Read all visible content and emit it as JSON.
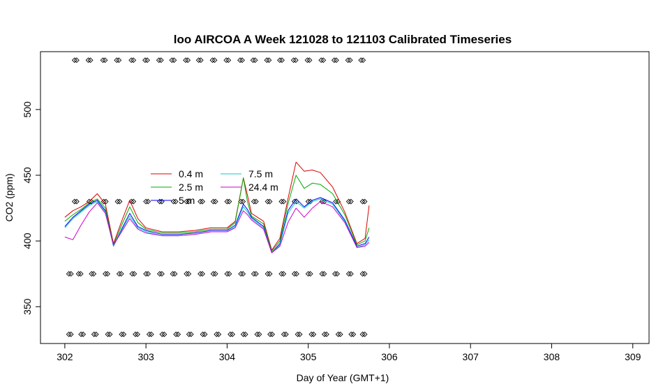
{
  "chart_data": {
    "type": "line",
    "title": "loo AIRCOA A  Week 121028 to 121103  Calibrated Timeseries",
    "xlabel": "Day of Year (GMT+1)",
    "ylabel": "CO2 (ppm)",
    "xlim": [
      301.7,
      309.2
    ],
    "ylim": [
      322,
      544
    ],
    "x_ticks": [
      302,
      303,
      304,
      305,
      306,
      307,
      308,
      309
    ],
    "y_ticks": [
      350,
      400,
      450,
      500
    ],
    "grid": false,
    "legend_placement": "center-left",
    "series": [
      {
        "name": "0.4 m",
        "color": "#dd0000",
        "points": [
          [
            302.0,
            418
          ],
          [
            302.1,
            423
          ],
          [
            302.2,
            426
          ],
          [
            302.3,
            430
          ],
          [
            302.4,
            436
          ],
          [
            302.5,
            428
          ],
          [
            302.6,
            398
          ],
          [
            302.7,
            415
          ],
          [
            302.8,
            431
          ],
          [
            302.9,
            417
          ],
          [
            303.0,
            410
          ],
          [
            303.2,
            407
          ],
          [
            303.4,
            407
          ],
          [
            303.6,
            408
          ],
          [
            303.8,
            410
          ],
          [
            304.0,
            410
          ],
          [
            304.1,
            415
          ],
          [
            304.2,
            448
          ],
          [
            304.25,
            435
          ],
          [
            304.3,
            421
          ],
          [
            304.45,
            415
          ],
          [
            304.55,
            393
          ],
          [
            304.65,
            402
          ],
          [
            304.75,
            432
          ],
          [
            304.85,
            460
          ],
          [
            304.95,
            453
          ],
          [
            305.05,
            454
          ],
          [
            305.15,
            452
          ],
          [
            305.3,
            441
          ],
          [
            305.45,
            422
          ],
          [
            305.6,
            398
          ],
          [
            305.7,
            402
          ],
          [
            305.75,
            427
          ]
        ]
      },
      {
        "name": "2.5 m",
        "color": "#00aa00",
        "points": [
          [
            302.0,
            415
          ],
          [
            302.1,
            420
          ],
          [
            302.2,
            424
          ],
          [
            302.3,
            429
          ],
          [
            302.4,
            432
          ],
          [
            302.5,
            425
          ],
          [
            302.6,
            397
          ],
          [
            302.7,
            412
          ],
          [
            302.8,
            426
          ],
          [
            302.9,
            414
          ],
          [
            303.0,
            409
          ],
          [
            303.2,
            406
          ],
          [
            303.4,
            406
          ],
          [
            303.6,
            407
          ],
          [
            303.8,
            409
          ],
          [
            304.0,
            409
          ],
          [
            304.1,
            414
          ],
          [
            304.2,
            448
          ],
          [
            304.25,
            430
          ],
          [
            304.3,
            419
          ],
          [
            304.45,
            413
          ],
          [
            304.55,
            392
          ],
          [
            304.65,
            400
          ],
          [
            304.75,
            428
          ],
          [
            304.85,
            450
          ],
          [
            304.95,
            440
          ],
          [
            305.05,
            444
          ],
          [
            305.15,
            443
          ],
          [
            305.3,
            436
          ],
          [
            305.45,
            420
          ],
          [
            305.6,
            397
          ],
          [
            305.7,
            400
          ],
          [
            305.75,
            410
          ]
        ]
      },
      {
        "name": "5 m",
        "color": "#0000ee",
        "points": [
          [
            302.0,
            411
          ],
          [
            302.1,
            418
          ],
          [
            302.2,
            423
          ],
          [
            302.3,
            428
          ],
          [
            302.4,
            431
          ],
          [
            302.5,
            423
          ],
          [
            302.6,
            396
          ],
          [
            302.7,
            409
          ],
          [
            302.8,
            421
          ],
          [
            302.9,
            411
          ],
          [
            303.0,
            408
          ],
          [
            303.2,
            405
          ],
          [
            303.4,
            405
          ],
          [
            303.6,
            406
          ],
          [
            303.8,
            408
          ],
          [
            304.0,
            408
          ],
          [
            304.1,
            412
          ],
          [
            304.2,
            428
          ],
          [
            304.25,
            424
          ],
          [
            304.3,
            418
          ],
          [
            304.45,
            411
          ],
          [
            304.55,
            391
          ],
          [
            304.65,
            398
          ],
          [
            304.75,
            423
          ],
          [
            304.85,
            432
          ],
          [
            304.95,
            426
          ],
          [
            305.05,
            431
          ],
          [
            305.15,
            433
          ],
          [
            305.3,
            429
          ],
          [
            305.45,
            416
          ],
          [
            305.6,
            396
          ],
          [
            305.7,
            398
          ],
          [
            305.75,
            403
          ]
        ]
      },
      {
        "name": "7.5 m",
        "color": "#00cccc",
        "points": [
          [
            302.0,
            410
          ],
          [
            302.1,
            417
          ],
          [
            302.2,
            422
          ],
          [
            302.3,
            427
          ],
          [
            302.4,
            430
          ],
          [
            302.5,
            422
          ],
          [
            302.6,
            396
          ],
          [
            302.7,
            408
          ],
          [
            302.8,
            419
          ],
          [
            302.9,
            410
          ],
          [
            303.0,
            407
          ],
          [
            303.2,
            404
          ],
          [
            303.4,
            404
          ],
          [
            303.6,
            405
          ],
          [
            303.8,
            407
          ],
          [
            304.0,
            407
          ],
          [
            304.1,
            411
          ],
          [
            304.2,
            426
          ],
          [
            304.25,
            422
          ],
          [
            304.3,
            417
          ],
          [
            304.45,
            410
          ],
          [
            304.55,
            391
          ],
          [
            304.65,
            397
          ],
          [
            304.75,
            421
          ],
          [
            304.85,
            430
          ],
          [
            304.95,
            425
          ],
          [
            305.05,
            430
          ],
          [
            305.15,
            432
          ],
          [
            305.3,
            428
          ],
          [
            305.45,
            415
          ],
          [
            305.6,
            395
          ],
          [
            305.7,
            397
          ],
          [
            305.75,
            401
          ]
        ]
      },
      {
        "name": "24.4 m",
        "color": "#cc00cc",
        "points": [
          [
            302.0,
            403
          ],
          [
            302.1,
            401
          ],
          [
            302.2,
            412
          ],
          [
            302.3,
            422
          ],
          [
            302.4,
            429
          ],
          [
            302.5,
            421
          ],
          [
            302.6,
            397
          ],
          [
            302.7,
            407
          ],
          [
            302.8,
            417
          ],
          [
            302.9,
            409
          ],
          [
            303.0,
            406
          ],
          [
            303.2,
            404
          ],
          [
            303.4,
            404
          ],
          [
            303.6,
            405
          ],
          [
            303.8,
            407
          ],
          [
            304.0,
            407
          ],
          [
            304.1,
            410
          ],
          [
            304.2,
            423
          ],
          [
            304.25,
            420
          ],
          [
            304.3,
            416
          ],
          [
            304.45,
            409
          ],
          [
            304.55,
            391
          ],
          [
            304.65,
            396
          ],
          [
            304.75,
            414
          ],
          [
            304.85,
            425
          ],
          [
            304.95,
            418
          ],
          [
            305.05,
            425
          ],
          [
            305.15,
            430
          ],
          [
            305.3,
            426
          ],
          [
            305.45,
            414
          ],
          [
            305.6,
            395
          ],
          [
            305.7,
            396
          ],
          [
            305.75,
            399
          ]
        ]
      }
    ],
    "marker_rows": [
      {
        "y": 537.5,
        "x": [
          302.12,
          302.29,
          302.47,
          302.64,
          302.82,
          302.99,
          303.16,
          303.32,
          303.49,
          303.65,
          303.82,
          303.99,
          304.16,
          304.32,
          304.49,
          304.65,
          304.82,
          304.99,
          305.16,
          305.32,
          305.49,
          305.65
        ]
      },
      {
        "y": 430,
        "x": [
          302.12,
          302.3,
          302.48,
          302.65,
          302.82,
          303.0,
          303.17,
          303.34,
          303.5,
          303.67,
          303.83,
          304.0,
          304.17,
          304.33,
          304.5,
          304.67,
          304.83,
          305.0,
          305.17,
          305.34,
          305.5,
          305.67
        ]
      },
      {
        "y": 375,
        "x": [
          302.05,
          302.17,
          302.33,
          302.5,
          302.67,
          302.83,
          303.0,
          303.17,
          303.33,
          303.5,
          303.67,
          303.83,
          304.0,
          304.17,
          304.33,
          304.5,
          304.67,
          304.83,
          305.0,
          305.17,
          305.33,
          305.5,
          305.67
        ]
      },
      {
        "y": 329,
        "x": [
          302.05,
          302.2,
          302.36,
          302.53,
          302.7,
          302.87,
          303.04,
          303.2,
          303.37,
          303.53,
          303.7,
          303.87,
          304.04,
          304.2,
          304.37,
          304.53,
          304.7,
          304.87,
          305.04,
          305.2,
          305.37,
          305.53,
          305.67
        ]
      }
    ]
  }
}
